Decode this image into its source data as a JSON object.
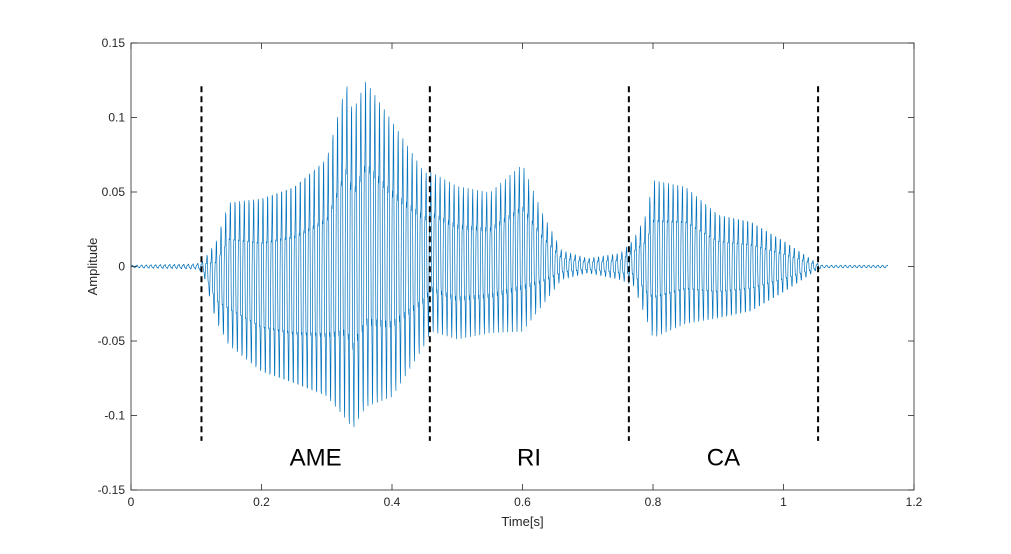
{
  "chart_data": {
    "type": "line",
    "title": "",
    "xlabel": "Time[s]",
    "ylabel": "Amplitude",
    "xlim": [
      0,
      1.2
    ],
    "ylim": [
      -0.15,
      0.15
    ],
    "x_ticks": [
      0,
      0.2,
      0.4,
      0.6,
      0.8,
      1,
      1.2
    ],
    "x_tick_labels": [
      "0",
      "0.2",
      "0.4",
      "0.6",
      "0.8",
      "1",
      "1.2"
    ],
    "y_ticks": [
      0.15,
      0.1,
      0.05,
      0,
      -0.05,
      -0.1,
      -0.15
    ],
    "y_tick_labels": [
      "0.15",
      "0.1",
      "0.05",
      "0",
      "-0.05",
      "-0.1",
      "-0.15"
    ],
    "grid": false,
    "series_color": "#0072BD",
    "divider_color": "#000000",
    "series": [
      {
        "name": "",
        "envelope": {
          "t": [
            0,
            0.1,
            0.11,
            0.13,
            0.15,
            0.2,
            0.25,
            0.3,
            0.33,
            0.34,
            0.36,
            0.4,
            0.45,
            0.46,
            0.5,
            0.55,
            0.6,
            0.63,
            0.66,
            0.7,
            0.75,
            0.77,
            0.79,
            0.8,
            0.85,
            0.9,
            0.95,
            1.0,
            1.05,
            1.06,
            1.1,
            1.16
          ],
          "upper": [
            0.001,
            0.002,
            0.004,
            0.02,
            0.05,
            0.055,
            0.065,
            0.085,
            0.14,
            0.12,
            0.14,
            0.11,
            0.07,
            0.07,
            0.06,
            0.055,
            0.075,
            0.04,
            0.012,
            0.006,
            0.01,
            0.02,
            0.04,
            0.065,
            0.06,
            0.04,
            0.035,
            0.02,
            0.003,
            0.001,
            0.001,
            0.001
          ],
          "lower": [
            -0.001,
            -0.002,
            -0.004,
            -0.04,
            -0.06,
            -0.08,
            -0.09,
            -0.1,
            -0.12,
            -0.125,
            -0.11,
            -0.1,
            -0.06,
            -0.05,
            -0.055,
            -0.05,
            -0.05,
            -0.03,
            -0.01,
            -0.005,
            -0.01,
            -0.015,
            -0.04,
            -0.055,
            -0.045,
            -0.04,
            -0.035,
            -0.02,
            -0.003,
            -0.001,
            -0.001,
            -0.001
          ]
        }
      }
    ],
    "dividers": [
      0.108,
      0.458,
      0.763,
      1.053
    ],
    "divider_range": [
      -0.117,
      0.121
    ],
    "segment_labels": [
      {
        "text": "AME",
        "x": 0.283,
        "y": -0.117
      },
      {
        "text": "RI",
        "x": 0.61,
        "y": -0.117
      },
      {
        "text": "CA",
        "x": 0.908,
        "y": -0.117
      }
    ]
  }
}
